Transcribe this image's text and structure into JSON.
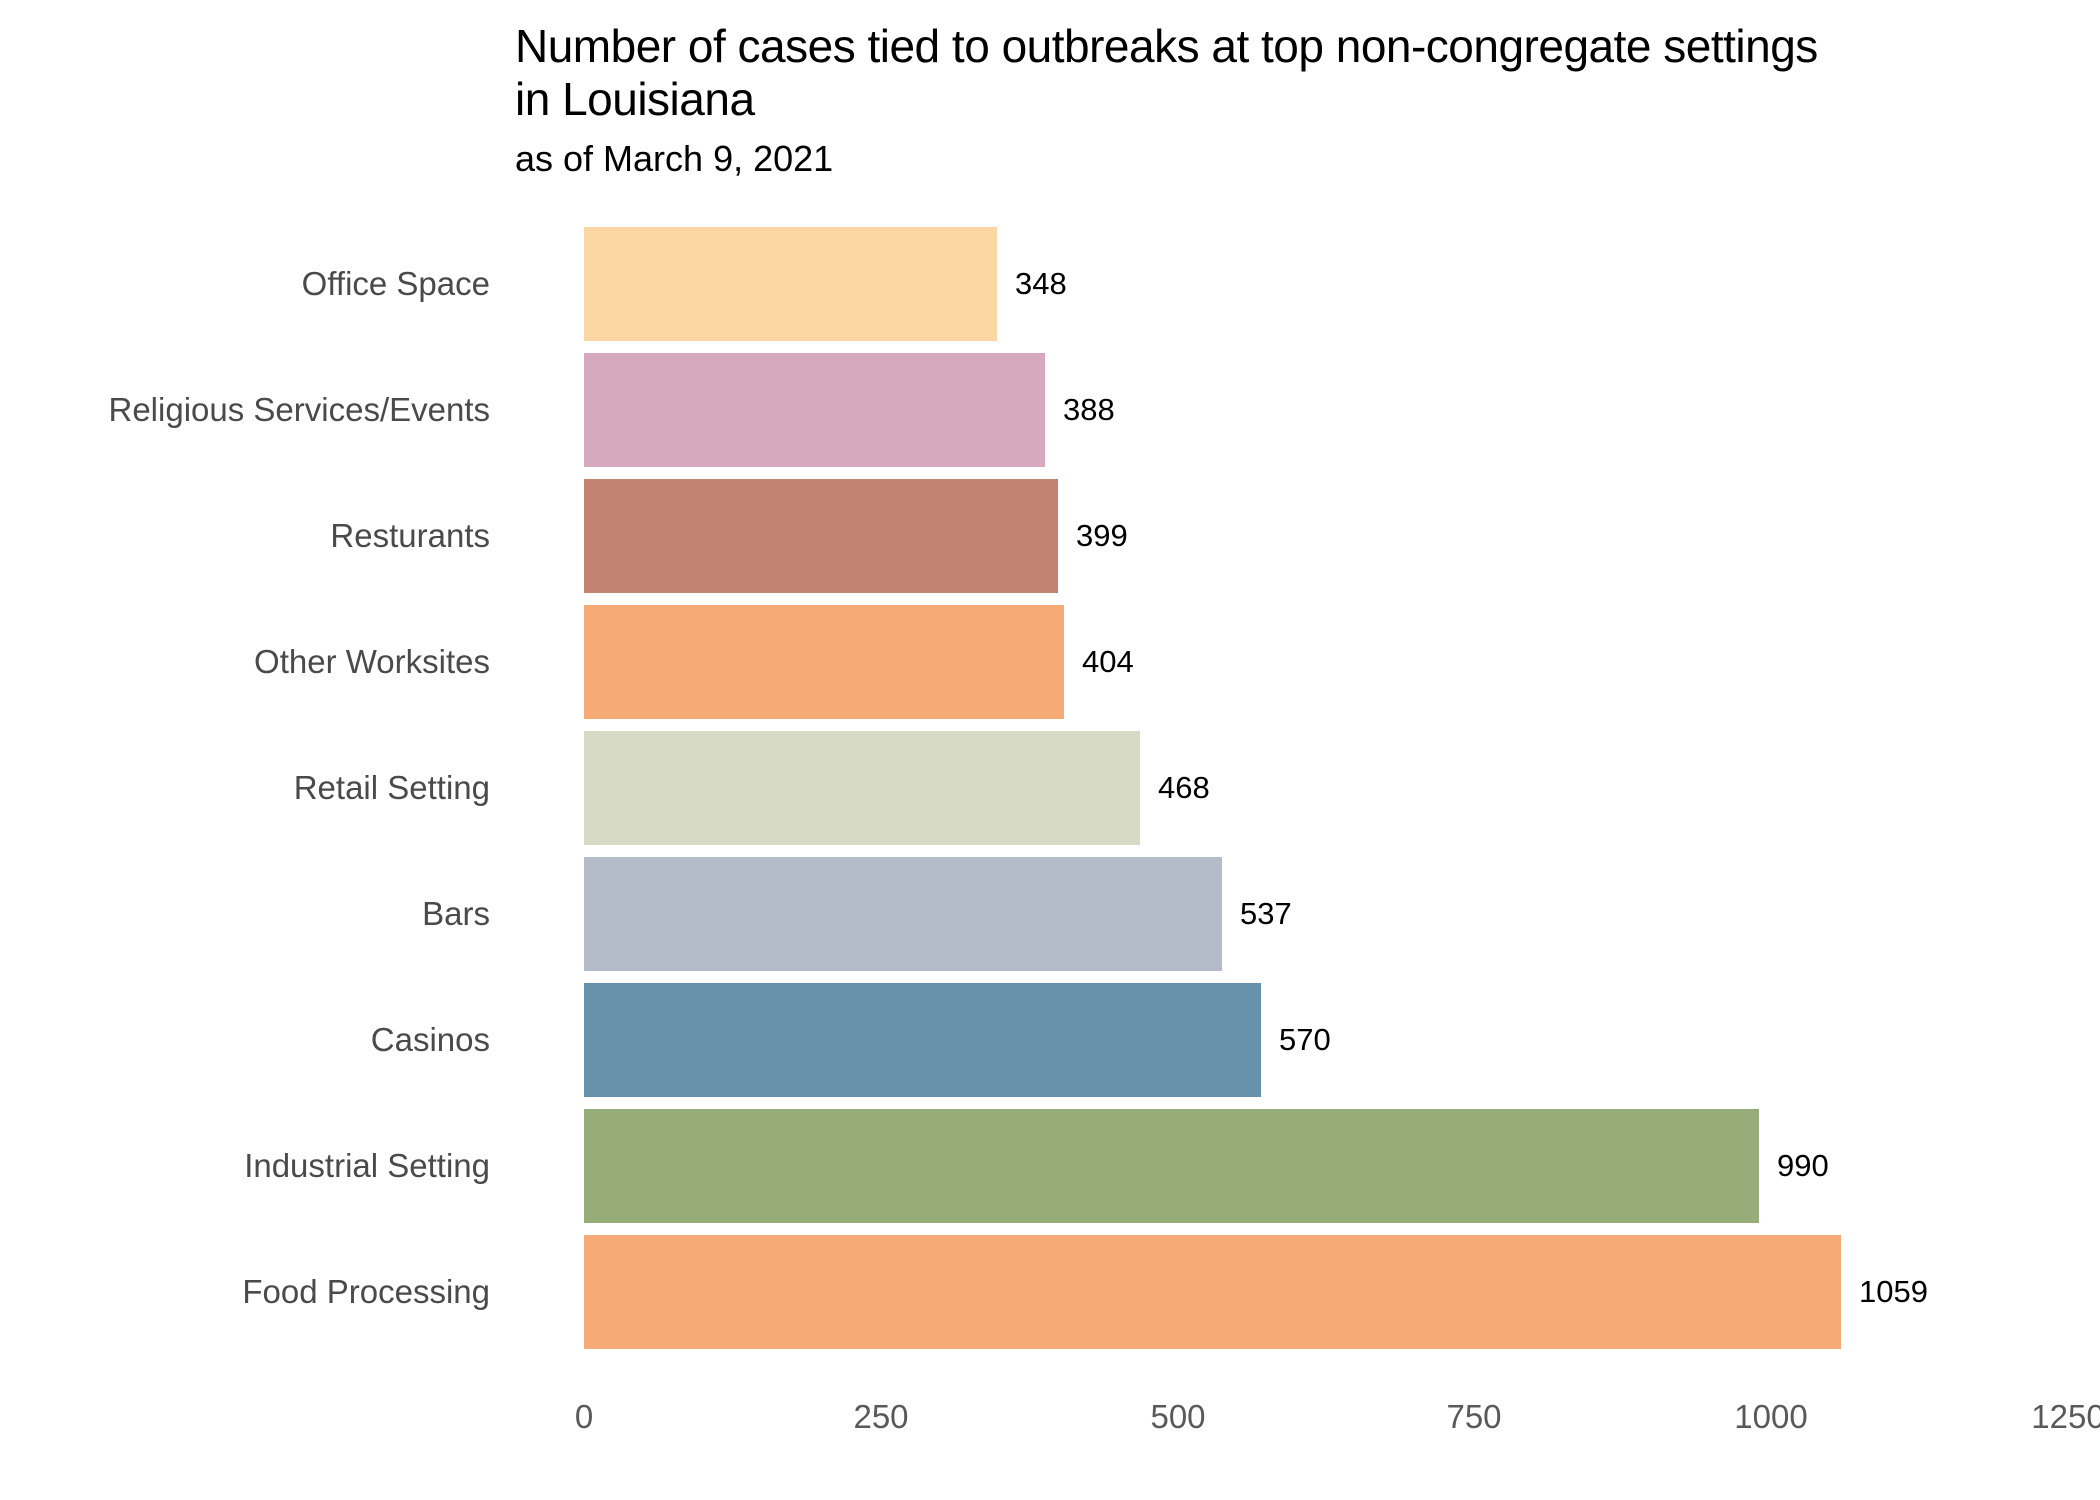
{
  "header": {
    "title_line1": "Number of cases tied to outbreaks at top non-congregate settings",
    "title_line2": "in Louisiana",
    "subtitle": "as of March 9, 2021"
  },
  "chart_data": {
    "type": "bar",
    "orientation": "horizontal",
    "title": "Number of cases tied to outbreaks at top non-congregate settings in Louisiana",
    "subtitle": "as of March 9, 2021",
    "categories": [
      "Office Space",
      "Religious Services/Events",
      "Resturants",
      "Other Worksites",
      "Retail Setting",
      "Bars",
      "Casinos",
      "Industrial Setting",
      "Food Processing"
    ],
    "values": [
      348,
      388,
      399,
      404,
      468,
      537,
      570,
      990,
      1059
    ],
    "bar_colors": [
      "#FBD7A4",
      "#D6A9C1",
      "#C28372",
      "#F6AB76",
      "#D7DAC4",
      "#B4BBC8",
      "#6891AC",
      "#96AC79",
      "#F6AB76"
    ],
    "value_labels_shown": true,
    "xlabel": "",
    "ylabel": "",
    "xlim": [
      0,
      1250
    ],
    "x_ticks": [
      "0",
      "250",
      "500",
      "750",
      "1000",
      "1250"
    ],
    "x_tick_values": [
      0,
      250,
      500,
      750,
      1000,
      1250
    ],
    "grid": false,
    "legend": false
  },
  "colors": {
    "background": "#FFFFFF",
    "title_text": "#000000",
    "category_label_text": "#4A4A4A",
    "value_label_text": "#000000",
    "tick_label_text": "#595959"
  }
}
